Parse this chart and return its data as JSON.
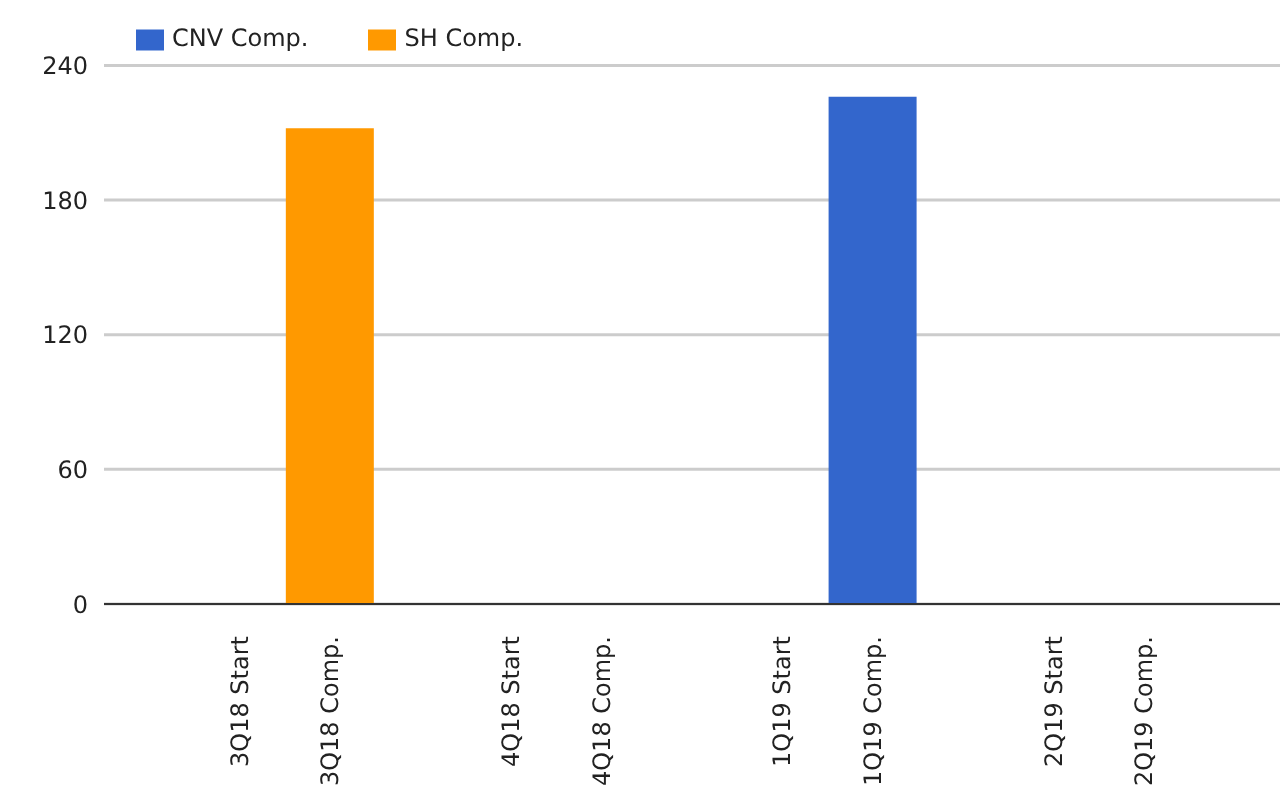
{
  "chart_data": {
    "type": "bar",
    "stacked": true,
    "categories": [
      null,
      "3Q18 Start",
      "3Q18 Comp.",
      null,
      "4Q18 Start",
      "4Q18 Comp.",
      null,
      "1Q19 Start",
      "1Q19 Comp.",
      null,
      "2Q19 Start",
      "2Q19 Comp.",
      null
    ],
    "series": [
      {
        "name": "CNV Comp.",
        "color": "#3366cc",
        "values": [
          null,
          null,
          null,
          null,
          null,
          null,
          null,
          null,
          226,
          null,
          null,
          null,
          null
        ]
      },
      {
        "name": "SH Comp.",
        "color": "#ff9900",
        "values": [
          null,
          null,
          212,
          null,
          null,
          null,
          null,
          null,
          null,
          null,
          null,
          null,
          null
        ]
      }
    ],
    "ylim": [
      0,
      240
    ],
    "yticks": [
      0,
      60,
      120,
      180,
      240
    ],
    "grid": "y",
    "legend": "top left"
  }
}
